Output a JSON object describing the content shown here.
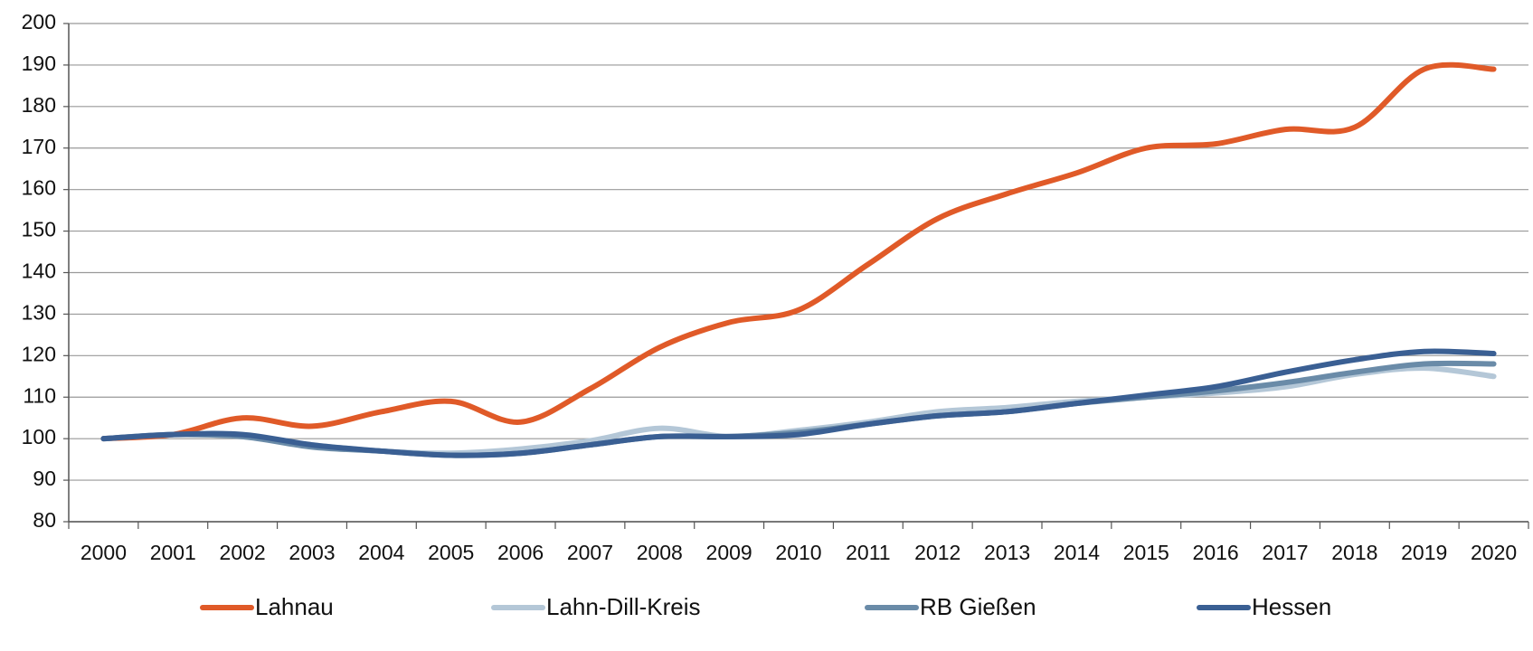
{
  "chart_data": {
    "type": "line",
    "categories": [
      "2000",
      "2001",
      "2002",
      "2003",
      "2004",
      "2005",
      "2006",
      "2007",
      "2008",
      "2009",
      "2010",
      "2011",
      "2012",
      "2013",
      "2014",
      "2015",
      "2016",
      "2017",
      "2018",
      "2019",
      "2020"
    ],
    "series": [
      {
        "name": "Lahnau",
        "color": "#e05a28",
        "values": [
          100,
          101,
          105,
          103,
          106.5,
          109,
          104,
          112,
          122,
          128,
          131,
          142,
          153,
          159,
          164,
          170,
          171,
          174.5,
          175,
          189,
          189
        ]
      },
      {
        "name": "Lahn-Dill-Kreis",
        "color": "#b4c7d7",
        "values": [
          100,
          101,
          100.5,
          98.5,
          97,
          96.5,
          97.5,
          99.5,
          102.5,
          100.5,
          102,
          104,
          106.5,
          107.5,
          109,
          110,
          111,
          112.5,
          115.5,
          117,
          115
        ]
      },
      {
        "name": "RB Gießen",
        "color": "#6a8ba8",
        "values": [
          100,
          101,
          100.5,
          98,
          97,
          96,
          96.5,
          98.5,
          100.5,
          100.5,
          101.5,
          103.5,
          105.5,
          106.5,
          108.5,
          110,
          111.5,
          113.5,
          116,
          118,
          118
        ]
      },
      {
        "name": "Hessen",
        "color": "#3a5f93",
        "values": [
          100,
          101,
          101,
          98.5,
          97,
          96,
          96.5,
          98.5,
          100.5,
          100.5,
          101,
          103.5,
          105.5,
          106.5,
          108.5,
          110.5,
          112.5,
          116,
          119,
          121,
          120.5
        ]
      }
    ],
    "ylim": [
      80,
      200
    ],
    "yticks": [
      80,
      90,
      100,
      110,
      120,
      130,
      140,
      150,
      160,
      170,
      180,
      190,
      200
    ],
    "grid": true
  }
}
